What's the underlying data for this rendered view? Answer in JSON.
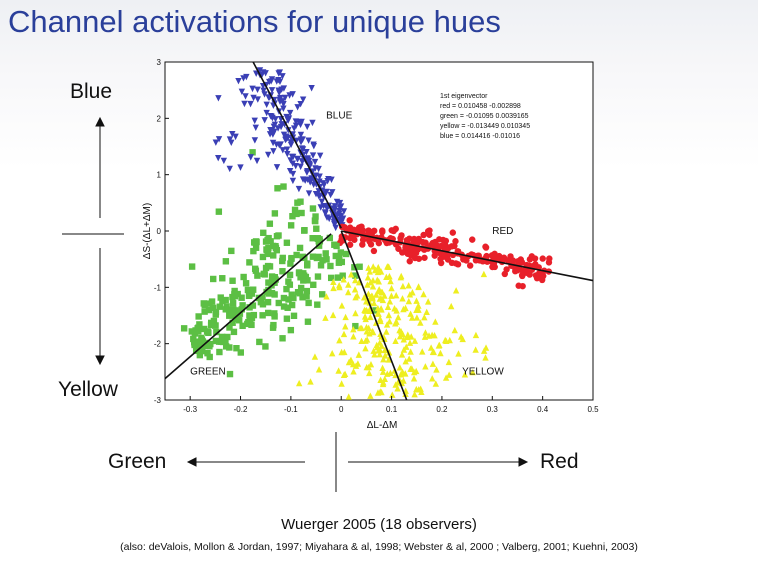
{
  "slide": {
    "title": "Channel activations for unique hues",
    "label_blue": "Blue",
    "label_yellow": "Yellow",
    "label_green": "Green",
    "label_red": "Red",
    "citation": "Wuerger 2005 (18 observers)",
    "also": "(also: deValois, Mollon & Jordan, 1997; Miyahara & al, 1998; Webster & al, 2000 ; Valberg, 2001; Kuehni, 2003)"
  },
  "chart_data": {
    "type": "scatter",
    "xlabel": "ΔL-ΔM",
    "ylabel": "ΔS-(ΔL+ΔM)",
    "xlim": [
      -0.35,
      0.5
    ],
    "ylim": [
      -3,
      3
    ],
    "x_ticks": [
      "-0.3",
      "-0.2",
      "-0.1",
      "0",
      "0.1",
      "0.2",
      "0.3",
      "0.4",
      "0.5"
    ],
    "y_ticks": [
      "3",
      "2",
      "1",
      "0",
      "-1",
      "-2",
      "-3"
    ],
    "eigenvector": {
      "header": "1st eigenvector",
      "rows": [
        "red = 0.010458   -0.002898",
        "green = -0.01095   0.0039165",
        "yellow = -0.013449   0.010345",
        "blue = 0.014416   -0.01016"
      ]
    },
    "series": [
      {
        "name": "BLUE",
        "color": "#3a3fb5",
        "marker": "triangle-down",
        "label_pos": [
          -0.03,
          2.0
        ],
        "center": [
          -0.11,
          1.6
        ],
        "count": 230,
        "line": [
          [
            -0.175,
            3.0
          ],
          [
            0.0,
            0.05
          ]
        ]
      },
      {
        "name": "RED",
        "color": "#e8202a",
        "marker": "circle",
        "label_pos": [
          0.3,
          -0.05
        ],
        "center": [
          0.17,
          -0.2
        ],
        "count": 230,
        "line": [
          [
            0.0,
            0.0
          ],
          [
            0.5,
            -0.88
          ]
        ]
      },
      {
        "name": "GREEN",
        "color": "#5cbf44",
        "marker": "square",
        "label_pos": [
          -0.3,
          -2.55
        ],
        "center": [
          -0.14,
          -1.0
        ],
        "count": 280,
        "line": [
          [
            -0.35,
            -2.62
          ],
          [
            -0.02,
            -0.05
          ]
        ]
      },
      {
        "name": "YELLOW",
        "color": "#eeee20",
        "marker": "triangle-up",
        "label_pos": [
          0.24,
          -2.55
        ],
        "center": [
          0.06,
          -1.6
        ],
        "count": 280,
        "line": [
          [
            0.0,
            0.0
          ],
          [
            0.13,
            -3.0
          ]
        ]
      }
    ]
  }
}
